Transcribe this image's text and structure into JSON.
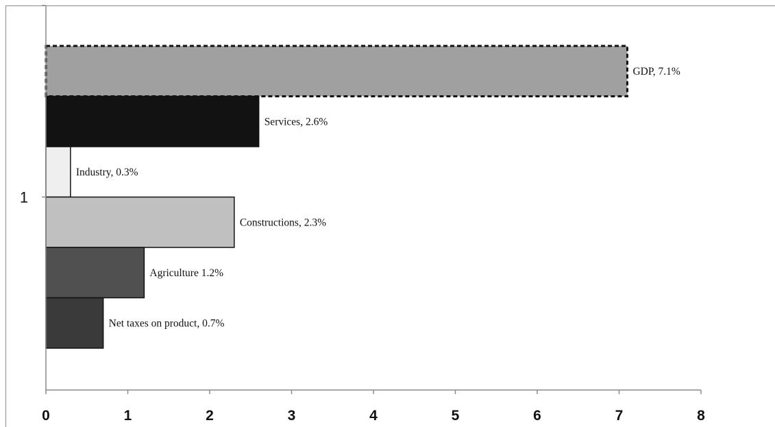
{
  "chart_data": {
    "type": "bar",
    "orientation": "horizontal",
    "categories": [
      "1"
    ],
    "series": [
      {
        "name": "GDP",
        "value": 7.1,
        "label": "GDP, 7.1%",
        "color": "#a0a0a0",
        "border": "dotted"
      },
      {
        "name": "Services",
        "value": 2.6,
        "label": "Services, 2.6%",
        "color": "#121212"
      },
      {
        "name": "Industry",
        "value": 0.3,
        "label": "Industry, 0.3%",
        "color": "#efefef"
      },
      {
        "name": "Constructions",
        "value": 2.3,
        "label": "Constructions, 2.3%",
        "color": "#c0c0c0"
      },
      {
        "name": "Agriculture",
        "value": 1.2,
        "label": "Agriculture 1.2%",
        "color": "#505050"
      },
      {
        "name": "Net taxes on product",
        "value": 0.7,
        "label": "Net taxes on product, 0.7%",
        "color": "#3a3a3a"
      }
    ],
    "xlim": [
      0,
      8
    ],
    "x_ticks": [
      "0",
      "1",
      "2",
      "3",
      "4",
      "5",
      "6",
      "7",
      "8"
    ],
    "title": "",
    "xlabel": "",
    "ylabel": "",
    "grid": false,
    "legend": "none"
  }
}
